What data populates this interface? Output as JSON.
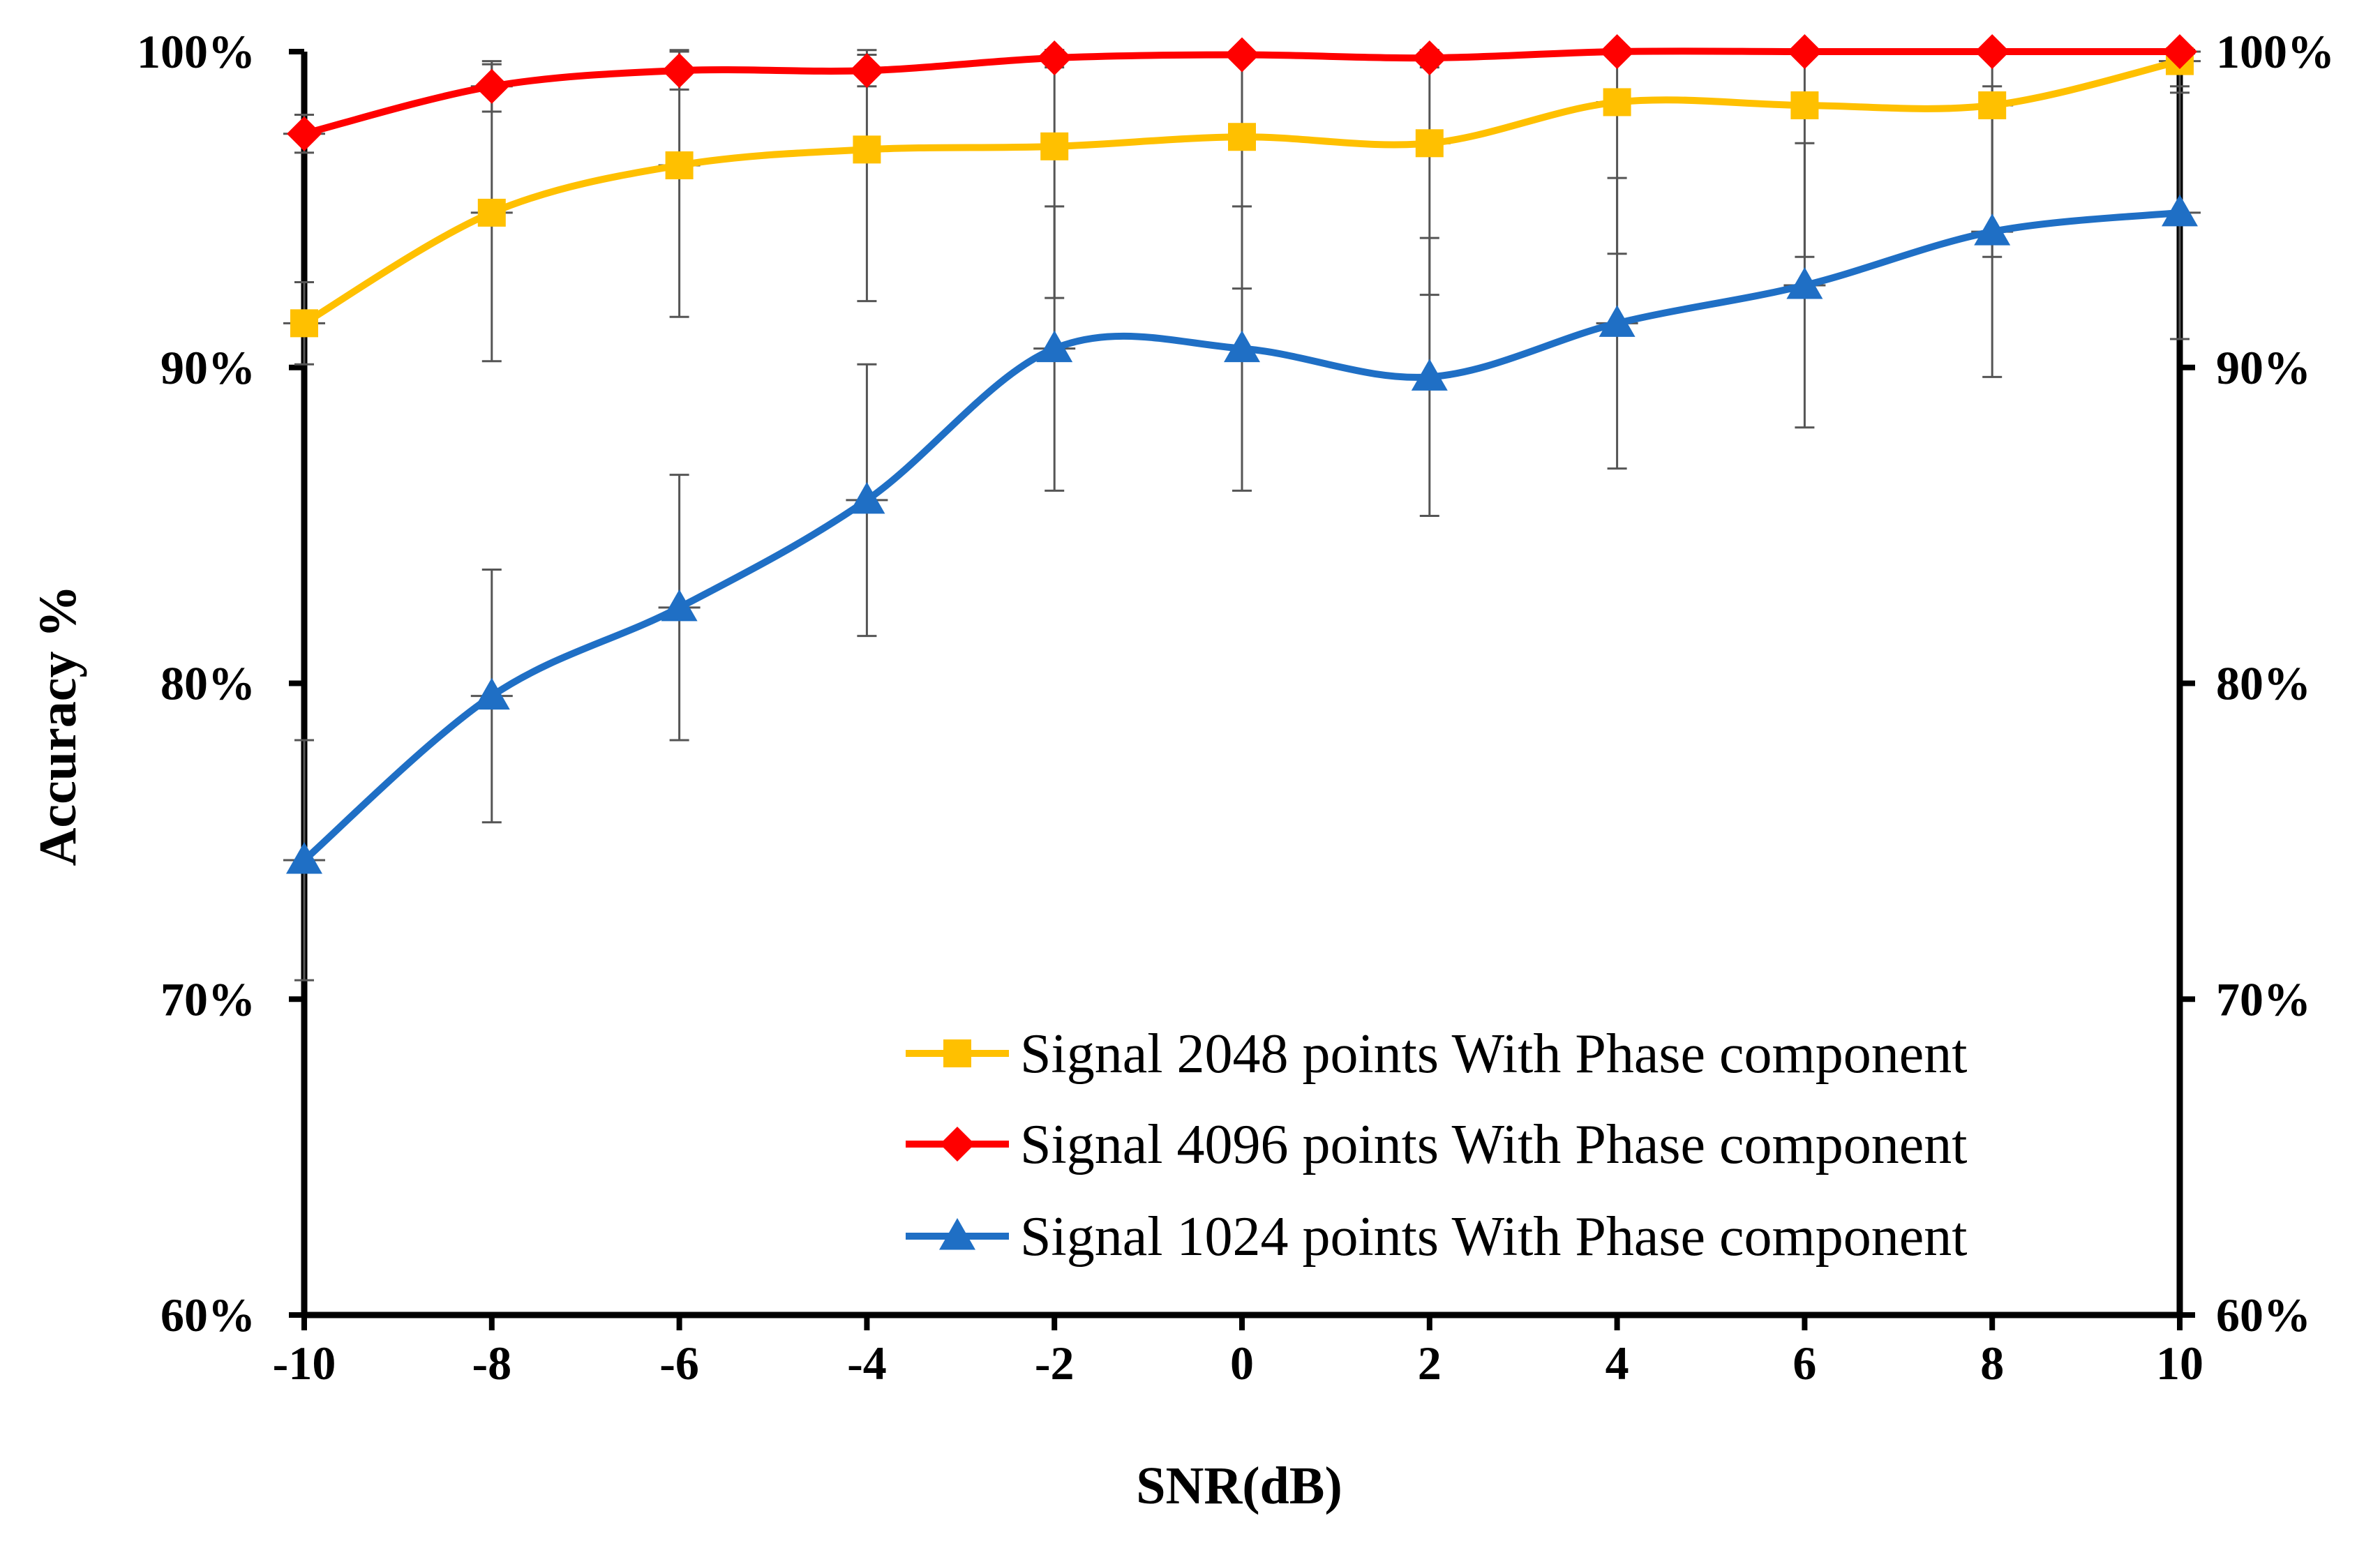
{
  "chart_data": {
    "type": "line",
    "title": "",
    "xlabel": "SNR(dB)",
    "ylabel": "Accuracy %",
    "x": [
      -10,
      -8,
      -6,
      -4,
      -2,
      0,
      2,
      4,
      6,
      8,
      10
    ],
    "x_tick_labels": [
      "-10",
      "-8",
      "-6",
      "-4",
      "-2",
      "0",
      "2",
      "4",
      "6",
      "8",
      "10"
    ],
    "xlim": [
      -10,
      10
    ],
    "ylim": [
      60,
      100
    ],
    "y_ticks": [
      60,
      70,
      80,
      90,
      100
    ],
    "y_tick_labels": [
      "60%",
      "70%",
      "80%",
      "90%",
      "100%"
    ],
    "y_tick_labels_right": [
      "60%",
      "70%",
      "80%",
      "90%",
      "100%"
    ],
    "grid": false,
    "legend_position": "bottom-right",
    "series": [
      {
        "name": "Signal 2048 points With Phase component",
        "color": "#FFC000",
        "marker": "square",
        "values": [
          91.4,
          94.9,
          96.4,
          96.9,
          97.0,
          97.3,
          97.1,
          98.4,
          98.3,
          98.3,
          99.7
        ],
        "errors": [
          1.3,
          4.7,
          4.8,
          4.8,
          4.8,
          4.8,
          4.8,
          4.8,
          4.8,
          4.8,
          1.0
        ]
      },
      {
        "name": "Signal 4096 points With Phase component",
        "color": "#FF0000",
        "marker": "diamond",
        "values": [
          97.4,
          98.9,
          99.4,
          99.4,
          99.8,
          99.9,
          99.8,
          100.0,
          100.0,
          100.0,
          100.0
        ],
        "errors": [
          0.6,
          0.8,
          0.6,
          0.5,
          0.3,
          0.2,
          0.3,
          0.1,
          0.1,
          0.1,
          0.1
        ]
      },
      {
        "name": "Signal 1024 points With Phase component",
        "color": "#1F6FC5",
        "marker": "triangle",
        "values": [
          74.4,
          79.6,
          82.4,
          85.8,
          90.6,
          90.6,
          89.7,
          91.4,
          92.6,
          94.3,
          94.9
        ],
        "errors": [
          3.8,
          4.0,
          4.2,
          4.3,
          4.5,
          4.5,
          4.4,
          4.6,
          4.5,
          4.6,
          4.0
        ]
      }
    ]
  }
}
